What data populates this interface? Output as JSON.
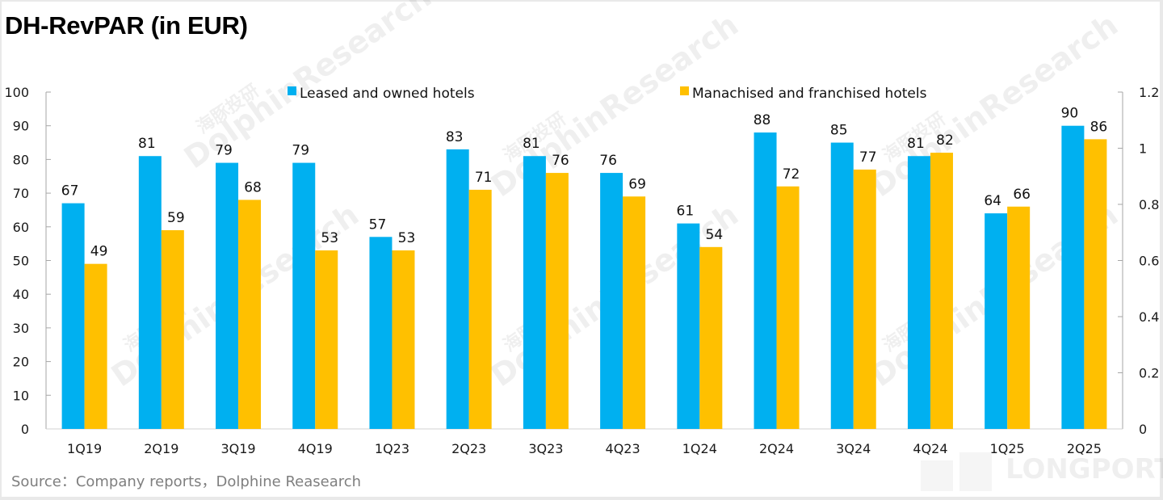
{
  "chart_data": {
    "type": "bar",
    "title": "DH-RevPAR (in EUR)",
    "xlabel": "",
    "ylabel": "",
    "categories": [
      "1Q19",
      "2Q19",
      "3Q19",
      "4Q19",
      "1Q23",
      "2Q23",
      "3Q23",
      "4Q23",
      "1Q24",
      "2Q24",
      "3Q24",
      "4Q24",
      "1Q25",
      "2Q25"
    ],
    "series": [
      {
        "name": "Leased and owned hotels",
        "color": "#00b0f0",
        "values": [
          67,
          81,
          79,
          79,
          57,
          83,
          81,
          76,
          61,
          88,
          85,
          81,
          64,
          90
        ]
      },
      {
        "name": "Manachised and franchised hotels",
        "color": "#ffc000",
        "values": [
          49,
          59,
          68,
          53,
          53,
          71,
          76,
          69,
          54,
          72,
          77,
          82,
          66,
          86
        ]
      }
    ],
    "ylim": [
      0,
      100
    ],
    "yticks": [
      0,
      10,
      20,
      30,
      40,
      50,
      60,
      70,
      80,
      90,
      100
    ],
    "y2lim": [
      0,
      1.2
    ],
    "y2ticks": [
      "0",
      "0.2",
      "0.4",
      "0.6",
      "0.8",
      "1",
      "1.2"
    ],
    "grid": false,
    "legend_position": "top"
  },
  "source": "Source：Company reports，Dolphine Reasearch",
  "watermarks": {
    "brand": "DolphinResearch",
    "brand_cn": "海豚投研",
    "footer_brand": "LONGPORT"
  }
}
